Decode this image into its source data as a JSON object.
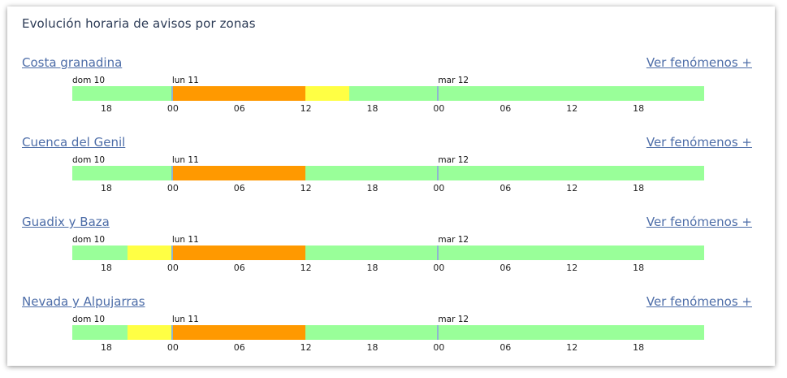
{
  "panel": {
    "title": "Evolución horaria de avisos por zonas"
  },
  "colors": {
    "green": "#99ff99",
    "yellow": "#ffff44",
    "orange": "#ff9900",
    "link": "#4d6da8",
    "day_separator": "#8fb5d1"
  },
  "timeline": {
    "start_hour_offset": 0,
    "total_hours": 57,
    "day_labels": [
      {
        "label": "dom 10",
        "hour": 0
      },
      {
        "label": "lun 11",
        "hour": 9
      },
      {
        "label": "mar 12",
        "hour": 33
      }
    ],
    "hour_ticks": [
      {
        "label": "18",
        "hour": 3
      },
      {
        "label": "00",
        "hour": 9
      },
      {
        "label": "06",
        "hour": 15
      },
      {
        "label": "12",
        "hour": 21
      },
      {
        "label": "18",
        "hour": 27
      },
      {
        "label": "00",
        "hour": 33
      },
      {
        "label": "06",
        "hour": 39
      },
      {
        "label": "12",
        "hour": 45
      },
      {
        "label": "18",
        "hour": 51
      }
    ]
  },
  "zones": [
    {
      "name": "Costa granadina",
      "more_label": "Ver fenómenos +",
      "levels": [
        {
          "level": "green",
          "from": 0,
          "to": 9
        },
        {
          "level": "orange",
          "from": 9,
          "to": 21
        },
        {
          "level": "yellow",
          "from": 21,
          "to": 25
        },
        {
          "level": "green",
          "from": 25,
          "to": 57
        }
      ]
    },
    {
      "name": "Cuenca del Genil",
      "more_label": "Ver fenómenos +",
      "levels": [
        {
          "level": "green",
          "from": 0,
          "to": 9
        },
        {
          "level": "orange",
          "from": 9,
          "to": 21
        },
        {
          "level": "green",
          "from": 21,
          "to": 57
        }
      ]
    },
    {
      "name": "Guadix y Baza",
      "more_label": "Ver fenómenos +",
      "levels": [
        {
          "level": "green",
          "from": 0,
          "to": 5
        },
        {
          "level": "yellow",
          "from": 5,
          "to": 9
        },
        {
          "level": "orange",
          "from": 9,
          "to": 21
        },
        {
          "level": "green",
          "from": 21,
          "to": 57
        }
      ]
    },
    {
      "name": "Nevada y Alpujarras",
      "more_label": "Ver fenómenos +",
      "levels": [
        {
          "level": "green",
          "from": 0,
          "to": 5
        },
        {
          "level": "yellow",
          "from": 5,
          "to": 9
        },
        {
          "level": "orange",
          "from": 9,
          "to": 21
        },
        {
          "level": "green",
          "from": 21,
          "to": 57
        }
      ]
    }
  ]
}
